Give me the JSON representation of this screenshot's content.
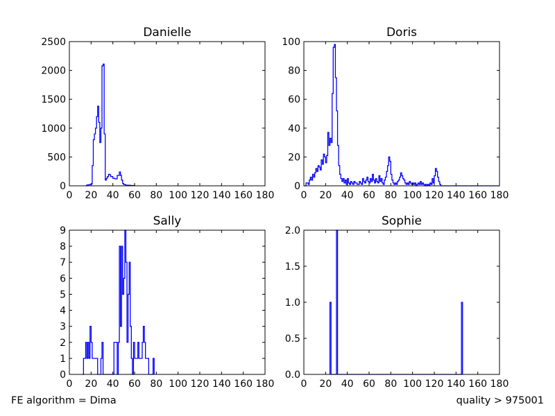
{
  "footer": {
    "left": "FE algorithm = Dima",
    "right": "quality > 975001"
  },
  "style": {
    "line_color": "#0000ff"
  },
  "chart_data": [
    {
      "type": "histogram",
      "title": "Danielle",
      "xlim": [
        0,
        180
      ],
      "ylim": [
        0,
        2500
      ],
      "xticks": [
        0,
        20,
        40,
        60,
        80,
        100,
        120,
        140,
        160,
        180
      ],
      "yticks": [
        0,
        500,
        1000,
        1500,
        2000,
        2500
      ],
      "points": [
        [
          15,
          0
        ],
        [
          16,
          15
        ],
        [
          18,
          20
        ],
        [
          20,
          30
        ],
        [
          21,
          350
        ],
        [
          22,
          800
        ],
        [
          23,
          900
        ],
        [
          24,
          1000
        ],
        [
          25,
          1200
        ],
        [
          26,
          1380
        ],
        [
          27,
          1100
        ],
        [
          28,
          750
        ],
        [
          29,
          1000
        ],
        [
          30,
          2080
        ],
        [
          31,
          2110
        ],
        [
          32,
          900
        ],
        [
          33,
          100
        ],
        [
          34,
          130
        ],
        [
          35,
          160
        ],
        [
          36,
          200
        ],
        [
          37,
          190
        ],
        [
          38,
          160
        ],
        [
          40,
          130
        ],
        [
          42,
          120
        ],
        [
          44,
          180
        ],
        [
          46,
          240
        ],
        [
          47,
          180
        ],
        [
          48,
          100
        ],
        [
          49,
          40
        ],
        [
          50,
          20
        ],
        [
          52,
          10
        ],
        [
          56,
          5
        ],
        [
          60,
          0
        ]
      ]
    },
    {
      "type": "histogram",
      "title": "Doris",
      "xlim": [
        0,
        180
      ],
      "ylim": [
        0,
        100
      ],
      "xticks": [
        0,
        20,
        40,
        60,
        80,
        100,
        120,
        140,
        160,
        180
      ],
      "yticks": [
        0,
        20,
        40,
        60,
        80,
        100
      ],
      "points": [
        [
          0,
          0
        ],
        [
          2,
          2
        ],
        [
          4,
          1
        ],
        [
          5,
          4
        ],
        [
          6,
          6
        ],
        [
          7,
          4
        ],
        [
          8,
          8
        ],
        [
          9,
          6
        ],
        [
          10,
          9
        ],
        [
          11,
          12
        ],
        [
          12,
          10
        ],
        [
          13,
          14
        ],
        [
          14,
          13
        ],
        [
          15,
          11
        ],
        [
          16,
          18
        ],
        [
          17,
          15
        ],
        [
          18,
          22
        ],
        [
          19,
          20
        ],
        [
          20,
          16
        ],
        [
          21,
          21
        ],
        [
          22,
          37
        ],
        [
          23,
          28
        ],
        [
          24,
          33
        ],
        [
          25,
          30
        ],
        [
          26,
          64
        ],
        [
          27,
          96
        ],
        [
          28,
          98
        ],
        [
          29,
          75
        ],
        [
          30,
          52
        ],
        [
          31,
          28
        ],
        [
          32,
          14
        ],
        [
          33,
          8
        ],
        [
          34,
          5
        ],
        [
          35,
          3
        ],
        [
          36,
          5
        ],
        [
          37,
          2
        ],
        [
          38,
          4
        ],
        [
          39,
          1
        ],
        [
          40,
          5
        ],
        [
          41,
          2
        ],
        [
          42,
          1
        ],
        [
          43,
          3
        ],
        [
          44,
          2
        ],
        [
          45,
          1
        ],
        [
          46,
          3
        ],
        [
          47,
          2
        ],
        [
          48,
          2
        ],
        [
          49,
          1
        ],
        [
          50,
          1
        ],
        [
          51,
          3
        ],
        [
          52,
          2
        ],
        [
          53,
          1
        ],
        [
          54,
          5
        ],
        [
          55,
          3
        ],
        [
          56,
          2
        ],
        [
          57,
          4
        ],
        [
          58,
          6
        ],
        [
          59,
          3
        ],
        [
          60,
          2
        ],
        [
          61,
          5
        ],
        [
          62,
          3
        ],
        [
          63,
          8
        ],
        [
          64,
          4
        ],
        [
          65,
          2
        ],
        [
          66,
          5
        ],
        [
          67,
          3
        ],
        [
          68,
          2
        ],
        [
          69,
          7
        ],
        [
          70,
          3
        ],
        [
          71,
          5
        ],
        [
          72,
          2
        ],
        [
          73,
          1
        ],
        [
          74,
          4
        ],
        [
          75,
          6
        ],
        [
          76,
          10
        ],
        [
          77,
          14
        ],
        [
          78,
          20
        ],
        [
          79,
          17
        ],
        [
          80,
          8
        ],
        [
          81,
          4
        ],
        [
          82,
          2
        ],
        [
          83,
          1
        ],
        [
          84,
          2
        ],
        [
          85,
          1
        ],
        [
          86,
          3
        ],
        [
          87,
          4
        ],
        [
          88,
          6
        ],
        [
          89,
          9
        ],
        [
          90,
          7
        ],
        [
          91,
          5
        ],
        [
          92,
          4
        ],
        [
          93,
          2
        ],
        [
          94,
          1
        ],
        [
          95,
          2
        ],
        [
          96,
          1
        ],
        [
          97,
          3
        ],
        [
          98,
          2
        ],
        [
          99,
          1
        ],
        [
          100,
          2
        ],
        [
          101,
          1
        ],
        [
          102,
          2
        ],
        [
          103,
          0
        ],
        [
          104,
          1
        ],
        [
          105,
          2
        ],
        [
          106,
          1
        ],
        [
          107,
          3
        ],
        [
          108,
          1
        ],
        [
          109,
          2
        ],
        [
          110,
          1
        ],
        [
          111,
          0
        ],
        [
          112,
          1
        ],
        [
          113,
          0
        ],
        [
          114,
          1
        ],
        [
          115,
          0
        ],
        [
          116,
          2
        ],
        [
          117,
          1
        ],
        [
          118,
          5
        ],
        [
          119,
          2
        ],
        [
          120,
          7
        ],
        [
          121,
          12
        ],
        [
          122,
          10
        ],
        [
          123,
          6
        ],
        [
          124,
          3
        ],
        [
          125,
          1
        ],
        [
          126,
          0
        ],
        [
          180,
          0
        ]
      ]
    },
    {
      "type": "histogram",
      "title": "Sally",
      "xlim": [
        0,
        180
      ],
      "ylim": [
        0,
        9
      ],
      "xticks": [
        0,
        20,
        40,
        60,
        80,
        100,
        120,
        140,
        160,
        180
      ],
      "yticks": [
        0,
        1,
        2,
        3,
        4,
        5,
        6,
        7,
        8,
        9
      ],
      "points": [
        [
          12,
          0
        ],
        [
          13,
          1
        ],
        [
          15,
          2
        ],
        [
          16,
          1
        ],
        [
          17,
          2
        ],
        [
          18,
          1
        ],
        [
          19,
          3
        ],
        [
          20,
          2
        ],
        [
          21,
          1
        ],
        [
          24,
          1
        ],
        [
          26,
          0
        ],
        [
          29,
          1
        ],
        [
          30,
          2
        ],
        [
          31,
          0
        ],
        [
          33,
          0
        ],
        [
          40,
          0
        ],
        [
          41,
          2
        ],
        [
          43,
          2
        ],
        [
          44,
          0
        ],
        [
          45,
          2
        ],
        [
          46,
          8
        ],
        [
          47,
          3
        ],
        [
          48,
          8
        ],
        [
          49,
          5
        ],
        [
          50,
          6
        ],
        [
          51,
          9
        ],
        [
          52,
          7
        ],
        [
          53,
          2
        ],
        [
          54,
          5
        ],
        [
          55,
          7
        ],
        [
          56,
          3
        ],
        [
          57,
          1
        ],
        [
          58,
          0
        ],
        [
          59,
          2
        ],
        [
          60,
          1
        ],
        [
          63,
          2
        ],
        [
          64,
          1
        ],
        [
          67,
          2
        ],
        [
          68,
          3
        ],
        [
          69,
          2
        ],
        [
          70,
          1
        ],
        [
          73,
          0
        ],
        [
          77,
          1
        ],
        [
          78,
          0
        ]
      ]
    },
    {
      "type": "histogram",
      "title": "Sophie",
      "xlim": [
        0,
        180
      ],
      "ylim": [
        0,
        2.0
      ],
      "xticks": [
        0,
        20,
        40,
        60,
        80,
        100,
        120,
        140,
        160,
        180
      ],
      "yticks": [
        0.0,
        0.5,
        1.0,
        1.5,
        2.0
      ],
      "points": [
        [
          24,
          0
        ],
        [
          24,
          1
        ],
        [
          25,
          1
        ],
        [
          25,
          0
        ],
        [
          30,
          0
        ],
        [
          30,
          2
        ],
        [
          31,
          2
        ],
        [
          31,
          0
        ],
        [
          145,
          0
        ],
        [
          145,
          1
        ],
        [
          146,
          1
        ],
        [
          146,
          0
        ]
      ]
    }
  ]
}
